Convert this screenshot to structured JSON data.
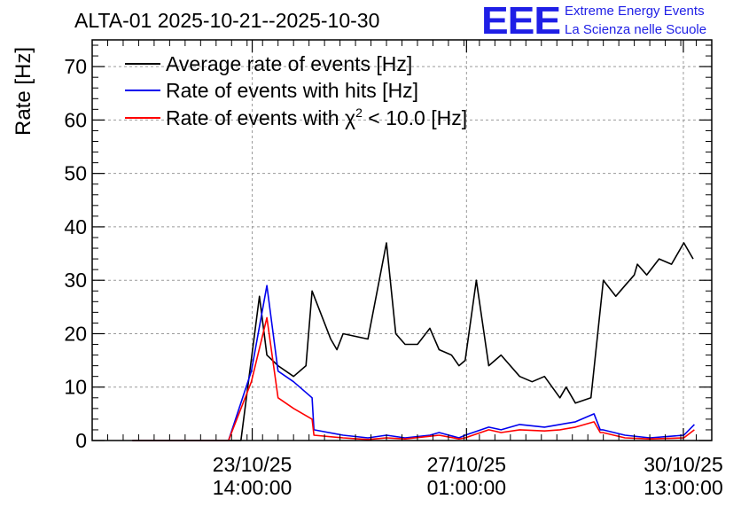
{
  "header": {
    "title": "ALTA-01 2025-10-21--2025-10-30",
    "logo_text": "EEE",
    "logo_line1": "Extreme Energy Events",
    "logo_line2": "La Scienza nelle Scuole"
  },
  "chart_data": {
    "type": "line",
    "title": "ALTA-01 2025-10-21--2025-10-30",
    "xlabel": "",
    "ylabel": "Rate [Hz]",
    "x_unit": "days since 2025-10-21 00:00",
    "xlim": [
      0.0,
      10.0
    ],
    "ylim": [
      0,
      75
    ],
    "y_ticks": [
      0,
      10,
      20,
      30,
      40,
      50,
      60,
      70
    ],
    "x_ticks": [
      {
        "x": 2.583,
        "line1": "23/10/25",
        "line2": "14:00:00"
      },
      {
        "x": 6.042,
        "line1": "27/10/25",
        "line2": "01:00:00"
      },
      {
        "x": 9.542,
        "line1": "30/10/25",
        "line2": "13:00:00"
      }
    ],
    "grid": true,
    "legend_position": "top-left",
    "colors": {
      "average": "#000000",
      "hits": "#0000ee",
      "chi2": "#ff0000"
    },
    "series": [
      {
        "name": "Average rate of events [Hz]",
        "legend_label": "Average rate of events [Hz]",
        "color": "#000000",
        "x": [
          0.65,
          2.2,
          2.4,
          2.7,
          2.82,
          3.0,
          3.25,
          3.45,
          3.55,
          3.85,
          3.95,
          4.05,
          4.45,
          4.75,
          4.9,
          5.05,
          5.25,
          5.45,
          5.6,
          5.8,
          5.92,
          6.02,
          6.2,
          6.4,
          6.6,
          6.9,
          7.1,
          7.3,
          7.55,
          7.65,
          7.8,
          8.05,
          8.25,
          8.45,
          8.6,
          8.75,
          8.8,
          8.95,
          9.15,
          9.35,
          9.55,
          9.7
        ],
        "y": [
          0,
          0,
          0,
          27,
          16,
          14,
          12,
          14,
          28,
          19,
          17,
          20,
          19,
          37,
          20,
          18,
          18,
          21,
          17,
          16,
          14,
          15,
          30,
          14,
          16,
          12,
          11,
          12,
          8,
          10,
          7,
          8,
          30,
          27,
          29,
          31,
          33,
          31,
          34,
          33,
          37,
          34
        ]
      },
      {
        "name": "Rate of events with hits [Hz]",
        "legend_label": "Rate of events with hits [Hz]",
        "color": "#0000ee",
        "x": [
          0.65,
          2.2,
          2.57,
          2.82,
          3.0,
          3.25,
          3.55,
          3.58,
          4.05,
          4.45,
          4.75,
          5.05,
          5.45,
          5.6,
          5.92,
          6.02,
          6.4,
          6.6,
          6.9,
          7.3,
          7.55,
          7.8,
          8.1,
          8.2,
          8.24,
          8.6,
          9.0,
          9.55,
          9.72
        ],
        "y": [
          0,
          0,
          13,
          29,
          13,
          11,
          8,
          2,
          1,
          0.5,
          1,
          0.5,
          1,
          1.5,
          0.5,
          1,
          2.5,
          2,
          3,
          2.5,
          3,
          3.5,
          5,
          2,
          2,
          1,
          0.5,
          1,
          3
        ]
      },
      {
        "name": "Rate of events with χ2 < 10.0 [Hz]",
        "legend_label": "Rate of events with χ",
        "legend_sup": "2",
        "legend_suffix": " < 10.0 [Hz]",
        "color": "#ff0000",
        "x": [
          0.65,
          2.2,
          2.57,
          2.82,
          3.0,
          3.25,
          3.55,
          3.58,
          4.05,
          4.45,
          4.75,
          5.05,
          5.45,
          5.6,
          5.92,
          6.02,
          6.4,
          6.6,
          6.9,
          7.3,
          7.55,
          7.8,
          8.1,
          8.2,
          8.24,
          8.6,
          9.0,
          9.55,
          9.72
        ],
        "y": [
          0,
          0,
          11,
          23,
          8,
          6,
          4,
          1,
          0.5,
          0.2,
          0.5,
          0.3,
          0.8,
          1,
          0.3,
          0.5,
          2,
          1.5,
          2,
          1.8,
          2,
          2.5,
          3.5,
          1.5,
          1.5,
          0.5,
          0.3,
          0.5,
          2
        ]
      }
    ]
  }
}
